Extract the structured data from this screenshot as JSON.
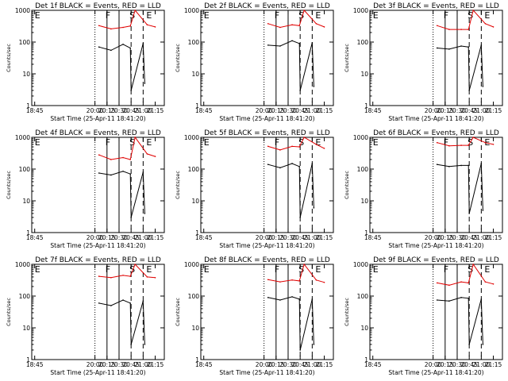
{
  "figure": {
    "background": "#ffffff",
    "colors": {
      "events": "#000000",
      "lld": "#e00000",
      "axes": "#000000"
    }
  },
  "chart_data": [
    {
      "type": "line",
      "title": "Det 1f BLACK = Events, RED = LLD",
      "xlabel": "Start Time (25-Apr-11 18:41:20)",
      "ylabel": "Counts/sec",
      "xticks": [
        "18:45",
        "20:00",
        "20:15",
        "20:30",
        "20:45",
        "21:00",
        "21:15"
      ],
      "yscale": "log",
      "ylim": [
        1,
        1000
      ],
      "yticks": [
        "1",
        "10",
        "100",
        "1000"
      ],
      "marks": [
        "E",
        "F",
        "S",
        "E"
      ],
      "series": [
        {
          "name": "LLD",
          "color": "#e00000",
          "values": [
            {
              "t": "20:05",
              "v": 330
            },
            {
              "t": "20:20",
              "v": 260
            },
            {
              "t": "20:35",
              "v": 290
            },
            {
              "t": "20:44",
              "v": 320
            },
            {
              "t": "20:50",
              "v": 1000
            },
            {
              "t": "21:05",
              "v": 350
            },
            {
              "t": "21:15",
              "v": 300
            }
          ]
        },
        {
          "name": "Events",
          "color": "#000000",
          "values": [
            {
              "t": "20:05",
              "v": 70
            },
            {
              "t": "20:20",
              "v": 55
            },
            {
              "t": "20:35",
              "v": 85
            },
            {
              "t": "20:44",
              "v": 65
            },
            {
              "t": "20:45",
              "v": 3
            },
            {
              "t": "21:00",
              "v": 90
            },
            {
              "t": "21:02",
              "v": 5
            }
          ]
        }
      ]
    },
    {
      "type": "line",
      "title": "Det 2f BLACK = Events, RED = LLD",
      "xlabel": "Start Time (25-Apr-11 18:41:20)",
      "ylabel": "Counts/sec",
      "xticks": [
        "18:45",
        "20:00",
        "20:15",
        "20:30",
        "20:45",
        "21:00",
        "21:15"
      ],
      "yscale": "log",
      "ylim": [
        1,
        1000
      ],
      "yticks": [
        "1",
        "10",
        "100",
        "1000"
      ],
      "marks": [
        "E",
        "F",
        "S",
        "E"
      ],
      "series": [
        {
          "name": "LLD",
          "color": "#e00000",
          "values": [
            {
              "t": "20:05",
              "v": 380
            },
            {
              "t": "20:20",
              "v": 290
            },
            {
              "t": "20:35",
              "v": 350
            },
            {
              "t": "20:44",
              "v": 330
            },
            {
              "t": "20:50",
              "v": 1000
            },
            {
              "t": "21:05",
              "v": 380
            },
            {
              "t": "21:15",
              "v": 300
            }
          ]
        },
        {
          "name": "Events",
          "color": "#000000",
          "values": [
            {
              "t": "20:05",
              "v": 80
            },
            {
              "t": "20:20",
              "v": 75
            },
            {
              "t": "20:35",
              "v": 110
            },
            {
              "t": "20:44",
              "v": 90
            },
            {
              "t": "20:45",
              "v": 3
            },
            {
              "t": "21:00",
              "v": 95
            },
            {
              "t": "21:02",
              "v": 4
            }
          ]
        }
      ]
    },
    {
      "type": "line",
      "title": "Det 3f BLACK = Events, RED = LLD",
      "xlabel": "Start Time (25-Apr-11 18:41:20)",
      "ylabel": "Counts/sec",
      "xticks": [
        "18:45",
        "20:00",
        "20:15",
        "20:30",
        "20:45",
        "21:00",
        "21:15"
      ],
      "yscale": "log",
      "ylim": [
        1,
        1000
      ],
      "yticks": [
        "1",
        "10",
        "100",
        "1000"
      ],
      "marks": [
        "E",
        "F",
        "S",
        "E"
      ],
      "series": [
        {
          "name": "LLD",
          "color": "#e00000",
          "values": [
            {
              "t": "20:05",
              "v": 330
            },
            {
              "t": "20:20",
              "v": 250
            },
            {
              "t": "20:35",
              "v": 250
            },
            {
              "t": "20:44",
              "v": 250
            },
            {
              "t": "20:50",
              "v": 1000
            },
            {
              "t": "21:05",
              "v": 380
            },
            {
              "t": "21:15",
              "v": 300
            }
          ]
        },
        {
          "name": "Events",
          "color": "#000000",
          "values": [
            {
              "t": "20:05",
              "v": 65
            },
            {
              "t": "20:20",
              "v": 60
            },
            {
              "t": "20:35",
              "v": 75
            },
            {
              "t": "20:44",
              "v": 70
            },
            {
              "t": "20:45",
              "v": 3
            },
            {
              "t": "21:00",
              "v": 80
            },
            {
              "t": "21:02",
              "v": 4
            }
          ]
        }
      ]
    },
    {
      "type": "line",
      "title": "Det 4f BLACK = Events, RED = LLD",
      "xlabel": "Start Time (25-Apr-11 18:41:20)",
      "ylabel": "Counts/sec",
      "xticks": [
        "18:45",
        "20:00",
        "20:15",
        "20:30",
        "20:45",
        "21:00",
        "21:15"
      ],
      "yscale": "log",
      "ylim": [
        1,
        1000
      ],
      "yticks": [
        "1",
        "10",
        "100",
        "1000"
      ],
      "marks": [
        "E",
        "F",
        "S",
        "E"
      ],
      "series": [
        {
          "name": "LLD",
          "color": "#e00000",
          "values": [
            {
              "t": "20:05",
              "v": 280
            },
            {
              "t": "20:20",
              "v": 200
            },
            {
              "t": "20:35",
              "v": 230
            },
            {
              "t": "20:44",
              "v": 200
            },
            {
              "t": "20:50",
              "v": 1000
            },
            {
              "t": "21:05",
              "v": 300
            },
            {
              "t": "21:15",
              "v": 250
            }
          ]
        },
        {
          "name": "Events",
          "color": "#000000",
          "values": [
            {
              "t": "20:05",
              "v": 75
            },
            {
              "t": "20:20",
              "v": 65
            },
            {
              "t": "20:35",
              "v": 85
            },
            {
              "t": "20:44",
              "v": 70
            },
            {
              "t": "20:45",
              "v": 3
            },
            {
              "t": "21:00",
              "v": 80
            },
            {
              "t": "21:02",
              "v": 4
            }
          ]
        }
      ]
    },
    {
      "type": "line",
      "title": "Det 5f BLACK = Events, RED = LLD",
      "xlabel": "Start Time (25-Apr-11 18:41:20)",
      "ylabel": "Counts/sec",
      "xticks": [
        "18:45",
        "20:00",
        "20:15",
        "20:30",
        "20:45",
        "21:00",
        "21:15"
      ],
      "yscale": "log",
      "ylim": [
        1,
        1000
      ],
      "yticks": [
        "1",
        "10",
        "100",
        "1000"
      ],
      "marks": [
        "E",
        "F",
        "S",
        "E"
      ],
      "series": [
        {
          "name": "LLD",
          "color": "#e00000",
          "values": [
            {
              "t": "20:05",
              "v": 520
            },
            {
              "t": "20:20",
              "v": 400
            },
            {
              "t": "20:35",
              "v": 520
            },
            {
              "t": "20:44",
              "v": 500
            },
            {
              "t": "20:50",
              "v": 1000
            },
            {
              "t": "21:05",
              "v": 600
            },
            {
              "t": "21:15",
              "v": 450
            }
          ]
        },
        {
          "name": "Events",
          "color": "#000000",
          "values": [
            {
              "t": "20:05",
              "v": 140
            },
            {
              "t": "20:20",
              "v": 110
            },
            {
              "t": "20:35",
              "v": 150
            },
            {
              "t": "20:44",
              "v": 120
            },
            {
              "t": "20:45",
              "v": 3
            },
            {
              "t": "21:00",
              "v": 150
            },
            {
              "t": "21:02",
              "v": 6
            }
          ]
        }
      ]
    },
    {
      "type": "line",
      "title": "Det 6f BLACK = Events, RED = LLD",
      "xlabel": "Start Time (25-Apr-11 18:41:20)",
      "ylabel": "Counts/sec",
      "xticks": [
        "18:45",
        "20:00",
        "20:15",
        "20:30",
        "20:45",
        "21:00",
        "21:15"
      ],
      "yscale": "log",
      "ylim": [
        1,
        1000
      ],
      "yticks": [
        "1",
        "10",
        "100",
        "1000"
      ],
      "marks": [
        "E",
        "F",
        "S",
        "E"
      ],
      "series": [
        {
          "name": "LLD",
          "color": "#e00000",
          "values": [
            {
              "t": "20:05",
              "v": 680
            },
            {
              "t": "20:20",
              "v": 540
            },
            {
              "t": "20:35",
              "v": 560
            },
            {
              "t": "20:44",
              "v": 560
            },
            {
              "t": "20:50",
              "v": 1000
            },
            {
              "t": "21:05",
              "v": 680
            },
            {
              "t": "21:15",
              "v": 600
            }
          ]
        },
        {
          "name": "Events",
          "color": "#000000",
          "values": [
            {
              "t": "20:05",
              "v": 140
            },
            {
              "t": "20:20",
              "v": 120
            },
            {
              "t": "20:35",
              "v": 130
            },
            {
              "t": "20:44",
              "v": 130
            },
            {
              "t": "20:45",
              "v": 4
            },
            {
              "t": "21:00",
              "v": 150
            },
            {
              "t": "21:02",
              "v": 5
            }
          ]
        }
      ]
    },
    {
      "type": "line",
      "title": "Det 7f BLACK = Events, RED = LLD",
      "xlabel": "Start Time (25-Apr-11 18:41:20)",
      "ylabel": "Counts/sec",
      "xticks": [
        "18:45",
        "20:00",
        "20:15",
        "20:30",
        "20:45",
        "21:00",
        "21:15"
      ],
      "yscale": "log",
      "ylim": [
        1,
        1000
      ],
      "yticks": [
        "1",
        "10",
        "100",
        "1000"
      ],
      "marks": [
        "E",
        "F",
        "S",
        "E"
      ],
      "series": [
        {
          "name": "LLD",
          "color": "#e00000",
          "values": [
            {
              "t": "20:05",
              "v": 420
            },
            {
              "t": "20:20",
              "v": 380
            },
            {
              "t": "20:35",
              "v": 450
            },
            {
              "t": "20:44",
              "v": 420
            },
            {
              "t": "20:50",
              "v": 1000
            },
            {
              "t": "21:05",
              "v": 400
            },
            {
              "t": "21:15",
              "v": 380
            }
          ]
        },
        {
          "name": "Events",
          "color": "#000000",
          "values": [
            {
              "t": "20:05",
              "v": 60
            },
            {
              "t": "20:20",
              "v": 50
            },
            {
              "t": "20:35",
              "v": 75
            },
            {
              "t": "20:44",
              "v": 60
            },
            {
              "t": "20:45",
              "v": 3
            },
            {
              "t": "21:00",
              "v": 70
            },
            {
              "t": "21:02",
              "v": 3
            }
          ]
        }
      ]
    },
    {
      "type": "line",
      "title": "Det 8f BLACK = Events, RED = LLD",
      "xlabel": "Start Time (25-Apr-11 18:41:20)",
      "ylabel": "Counts/sec",
      "xticks": [
        "18:45",
        "20:00",
        "20:15",
        "20:30",
        "20:45",
        "21:00",
        "21:15"
      ],
      "yscale": "log",
      "ylim": [
        1,
        1000
      ],
      "yticks": [
        "1",
        "10",
        "100",
        "1000"
      ],
      "marks": [
        "E",
        "F",
        "S",
        "E"
      ],
      "series": [
        {
          "name": "LLD",
          "color": "#e00000",
          "values": [
            {
              "t": "20:05",
              "v": 330
            },
            {
              "t": "20:20",
              "v": 280
            },
            {
              "t": "20:35",
              "v": 320
            },
            {
              "t": "20:44",
              "v": 300
            },
            {
              "t": "20:50",
              "v": 1000
            },
            {
              "t": "21:05",
              "v": 320
            },
            {
              "t": "21:15",
              "v": 270
            }
          ]
        },
        {
          "name": "Events",
          "color": "#000000",
          "values": [
            {
              "t": "20:05",
              "v": 90
            },
            {
              "t": "20:20",
              "v": 75
            },
            {
              "t": "20:35",
              "v": 95
            },
            {
              "t": "20:44",
              "v": 80
            },
            {
              "t": "20:45",
              "v": 2
            },
            {
              "t": "21:00",
              "v": 80
            },
            {
              "t": "21:02",
              "v": 3
            }
          ]
        }
      ]
    },
    {
      "type": "line",
      "title": "Det 9f BLACK = Events, RED = LLD",
      "xlabel": "Start Time (25-Apr-11 18:41:20)",
      "ylabel": "Counts/sec",
      "xticks": [
        "18:45",
        "20:00",
        "20:15",
        "20:30",
        "20:45",
        "21:00",
        "21:15"
      ],
      "yscale": "log",
      "ylim": [
        1,
        1000
      ],
      "yticks": [
        "1",
        "10",
        "100",
        "1000"
      ],
      "marks": [
        "E",
        "F",
        "S",
        "E"
      ],
      "series": [
        {
          "name": "LLD",
          "color": "#e00000",
          "values": [
            {
              "t": "20:05",
              "v": 260
            },
            {
              "t": "20:20",
              "v": 220
            },
            {
              "t": "20:35",
              "v": 280
            },
            {
              "t": "20:44",
              "v": 260
            },
            {
              "t": "20:50",
              "v": 1000
            },
            {
              "t": "21:05",
              "v": 280
            },
            {
              "t": "21:15",
              "v": 240
            }
          ]
        },
        {
          "name": "Events",
          "color": "#000000",
          "values": [
            {
              "t": "20:05",
              "v": 75
            },
            {
              "t": "20:20",
              "v": 70
            },
            {
              "t": "20:35",
              "v": 90
            },
            {
              "t": "20:44",
              "v": 85
            },
            {
              "t": "20:45",
              "v": 3
            },
            {
              "t": "21:00",
              "v": 80
            },
            {
              "t": "21:02",
              "v": 3
            }
          ]
        }
      ]
    }
  ]
}
